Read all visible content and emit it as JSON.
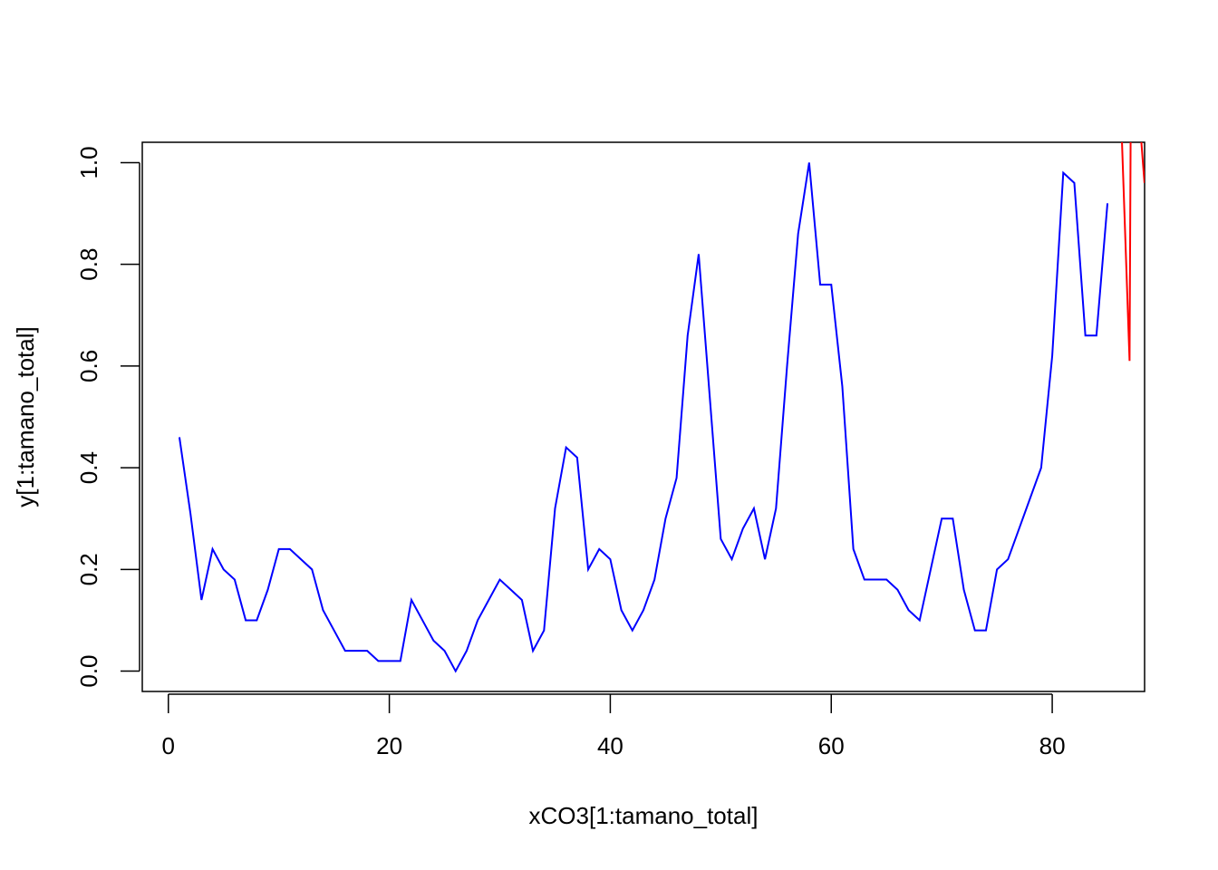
{
  "chart_data": {
    "type": "line",
    "xlabel": "xCO3[1:tamano_total]",
    "ylabel": "y[1:tamano_total]",
    "xlim": [
      -2.36,
      88.36
    ],
    "ylim": [
      -0.04,
      1.04
    ],
    "xticks": [
      0,
      20,
      40,
      60,
      80
    ],
    "yticks": [
      {
        "value": 0,
        "label": "0.0"
      },
      {
        "value": 0.2,
        "label": "0.2"
      },
      {
        "value": 0.4,
        "label": "0.4"
      },
      {
        "value": 0.6,
        "label": "0.6"
      },
      {
        "value": 0.8,
        "label": "0.8"
      },
      {
        "value": 1,
        "label": "1.0"
      }
    ],
    "series": [
      {
        "color": "#0000ff",
        "x": [
          1,
          2,
          3,
          4,
          5,
          6,
          7,
          8,
          9,
          10,
          11,
          12,
          13,
          14,
          15,
          16,
          17,
          18,
          19,
          20,
          21,
          22,
          23,
          24,
          25,
          26,
          27,
          28,
          29,
          30,
          31,
          32,
          33,
          34,
          35,
          36,
          37,
          38,
          39,
          40,
          41,
          42,
          43,
          44,
          45,
          46,
          47,
          48,
          49,
          50,
          51,
          52,
          53,
          54,
          55,
          56,
          57,
          58,
          59,
          60,
          61,
          62,
          63,
          64,
          65,
          66,
          67,
          68,
          69,
          70,
          71,
          72,
          73,
          74,
          75,
          76,
          77,
          78,
          79,
          80,
          81,
          82,
          83,
          84,
          85
        ],
        "values": [
          0.46,
          0.31,
          0.14,
          0.24,
          0.2,
          0.18,
          0.1,
          0.1,
          0.16,
          0.24,
          0.24,
          0.22,
          0.2,
          0.12,
          0.08,
          0.04,
          0.04,
          0.04,
          0.02,
          0.02,
          0.02,
          0.14,
          0.1,
          0.06,
          0.04,
          0,
          0.04,
          0.1,
          0.14,
          0.18,
          0.16,
          0.14,
          0.04,
          0.08,
          0.32,
          0.44,
          0.42,
          0.2,
          0.24,
          0.22,
          0.12,
          0.08,
          0.12,
          0.18,
          0.3,
          0.38,
          0.66,
          0.82,
          0.54,
          0.26,
          0.22,
          0.28,
          0.32,
          0.22,
          0.32,
          0.6,
          0.86,
          1,
          0.76,
          0.76,
          0.56,
          0.24,
          0.18,
          0.18,
          0.18,
          0.16,
          0.12,
          0.1,
          0.2,
          0.3,
          0.3,
          0.16,
          0.08,
          0.08,
          0.2,
          0.22,
          0.28,
          0.34,
          0.4,
          0.62,
          0.98,
          0.96,
          0.66,
          0.66,
          0.92
        ]
      },
      {
        "color": "#ff0000",
        "x": [
          85.9,
          87,
          87.15,
          88.35
        ],
        "values": [
          1.3,
          0.61,
          1.3,
          0.96
        ]
      }
    ]
  }
}
